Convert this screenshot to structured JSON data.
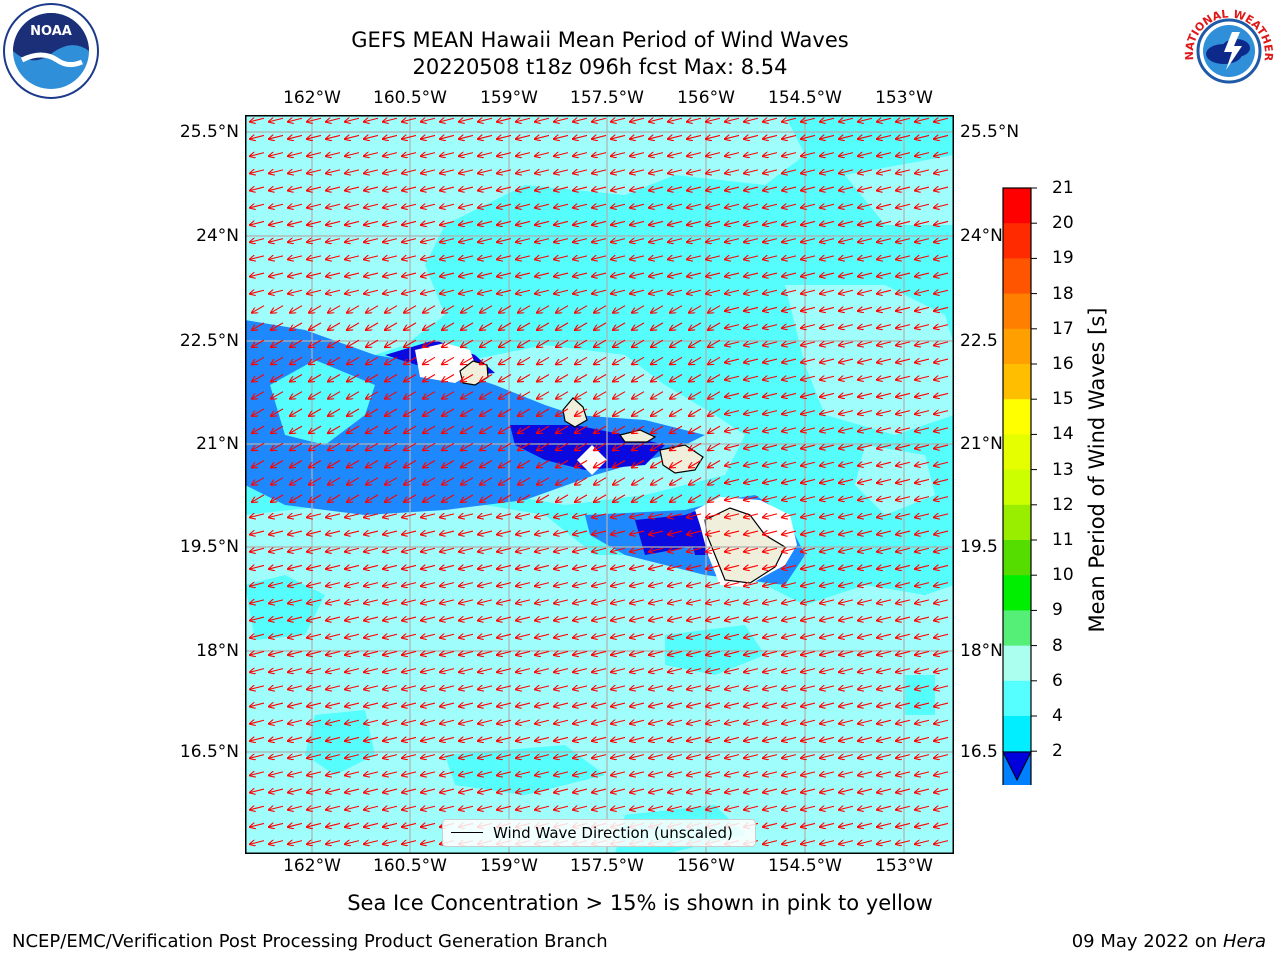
{
  "title": {
    "line1": "GEFS MEAN Hawaii Mean Period of Wind Waves",
    "line2": "20220508 t18z 096h fcst   Max: 8.54"
  },
  "subtitle": "Sea Ice Concentration > 15% is shown in pink to yellow",
  "footer": {
    "left": "NCEP/EMC/Verification Post Processing Product Generation Branch",
    "right_prefix": "09 May 2022 on ",
    "right_machine": "Hera"
  },
  "legend": {
    "label": "Wind Wave Direction (unscaled)"
  },
  "axes": {
    "lon_labels": [
      "162°W",
      "160.5°W",
      "159°W",
      "157.5°W",
      "156°W",
      "154.5°W",
      "153°W"
    ],
    "lat_labels": [
      "25.5°N",
      "24°N",
      "22.5°N",
      "21°N",
      "19.5°N",
      "18°N",
      "16.5°N"
    ],
    "lat_labels_right": [
      "25.5°N",
      "24°N",
      "22.5",
      "21°N",
      "19.5",
      "18°N",
      "16.5"
    ]
  },
  "colorbar": {
    "title": "Mean Period of Wind Waves [s]",
    "ticks": [
      "21",
      "20",
      "19",
      "18",
      "17",
      "16",
      "15",
      "14",
      "13",
      "12",
      "11",
      "10",
      "9",
      "8",
      "6",
      "4",
      "2"
    ],
    "colors": [
      "#ff0000",
      "#ff2a00",
      "#ff5500",
      "#ff7f00",
      "#ff9f00",
      "#ffbf00",
      "#ffff00",
      "#e5ff00",
      "#ccff00",
      "#99ee00",
      "#55dd00",
      "#00ee00",
      "#55ee77",
      "#aaffee",
      "#55ffff",
      "#00eeff",
      "#0080ff"
    ],
    "under_color": "#0000dd"
  },
  "colors": {
    "ocean_light": "#9ffefc",
    "ocean_mid": "#55fdfd",
    "ocean_deep": "#1e88ff",
    "ocean_darkest": "#0a0ae0",
    "land": "#efefdc",
    "arrow": "#ff0000",
    "grid": "#b0b0b0"
  },
  "logos": {
    "noaa_text": "NOAA",
    "nws_text": "NATIONAL WEATHER SERVICE"
  }
}
